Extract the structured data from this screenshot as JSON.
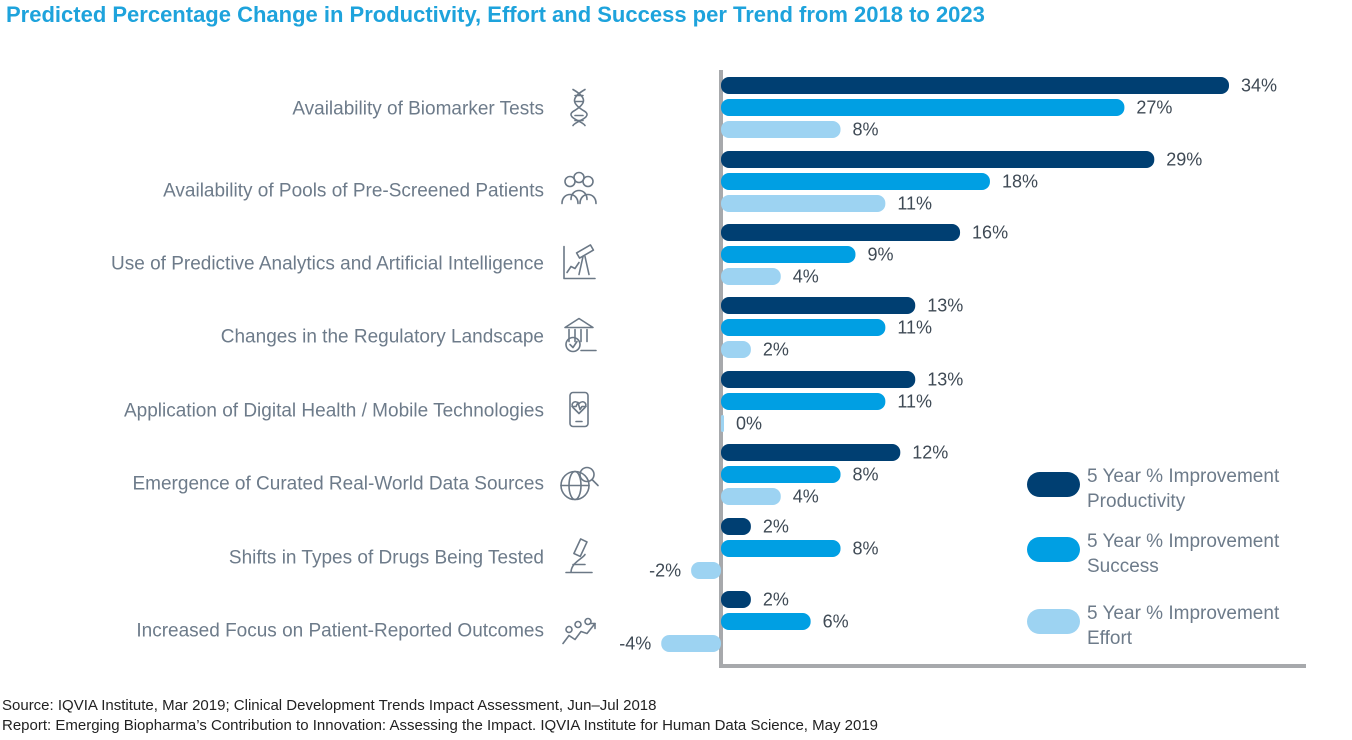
{
  "chart_data": {
    "type": "bar",
    "orientation": "horizontal",
    "title": "Predicted Percentage Change in Productivity, Effort and Success per Trend from 2018 to 2023",
    "categories": [
      "Availability of Biomarker Tests",
      "Availability of Pools of Pre-Screened Patients",
      "Use of Predictive Analytics and Artificial Intelligence",
      "Changes in the Regulatory Landscape",
      "Application of Digital Health / Mobile Technologies",
      "Emergence of Curated Real-World Data Sources",
      "Shifts in Types of Drugs Being Tested",
      "Increased Focus on Patient-Reported Outcomes"
    ],
    "icons": [
      "dna-icon",
      "people-group-icon",
      "telescope-chart-icon",
      "regulatory-building-icon",
      "mobile-health-icon",
      "globe-search-icon",
      "microscope-icon",
      "patient-trend-icon"
    ],
    "series": [
      {
        "name": "5 Year % Improvement Productivity",
        "color": "#003f72",
        "values": [
          34,
          29,
          16,
          13,
          13,
          12,
          2,
          2
        ],
        "labels": [
          "34%",
          "29%",
          "16%",
          "13%",
          "13%",
          "12%",
          "2%",
          "2%"
        ]
      },
      {
        "name": "5 Year % Improvement Success",
        "color": "#009fe3",
        "values": [
          27,
          18,
          9,
          11,
          11,
          8,
          8,
          6
        ],
        "labels": [
          "27%",
          "18%",
          "9%",
          "11%",
          "11%",
          "8%",
          "8%",
          "6%"
        ]
      },
      {
        "name": "5 Year % Improvement Effort",
        "color": "#9dd3f2",
        "values": [
          8,
          11,
          4,
          2,
          0,
          4,
          -2,
          -4
        ],
        "labels": [
          "8%",
          "11%",
          "4%",
          "2%",
          "0%",
          "4%",
          "-2%",
          "-4%"
        ]
      }
    ],
    "legend": [
      {
        "line1": "5 Year % Improvement",
        "line2": "Productivity",
        "color": "#003f72"
      },
      {
        "line1": "5 Year % Improvement",
        "line2": "Success",
        "color": "#009fe3"
      },
      {
        "line1": "5 Year % Improvement",
        "line2": "Effort",
        "color": "#9dd3f2"
      }
    ],
    "legend_position": "right",
    "xlim": [
      -4,
      34
    ],
    "grid": false
  },
  "source": {
    "line1": "Source: IQVIA Institute, Mar 2019; Clinical Development Trends Impact Assessment, Jun–Jul 2018",
    "line2": "Report: Emerging Biopharma’s Contribution to Innovation: Assessing the Impact. IQVIA Institute for Human Data Science, May 2019"
  },
  "colors": {
    "title": "#1ea3dc",
    "axis": "#a7a9ac",
    "label": "#6d7b8a"
  }
}
